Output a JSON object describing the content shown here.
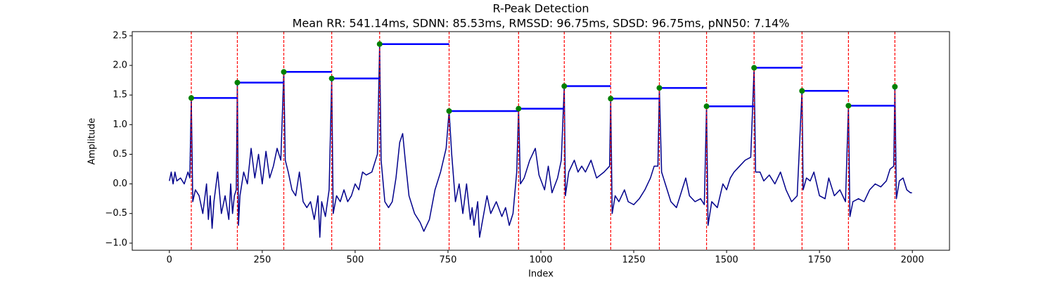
{
  "chart_data": {
    "type": "line",
    "title": "R-Peak Detection",
    "subtitle": "Mean RR: 541.14ms, SDNN: 85.53ms, RMSSD: 96.75ms, SDSD: 96.75ms, pNN50: 7.14%",
    "x_label": "Index",
    "y_label": "Amplitude",
    "xlim": [
      -100,
      2100
    ],
    "ylim": [
      -1.12,
      2.57
    ],
    "xticks": [
      0,
      250,
      500,
      750,
      1000,
      1250,
      1500,
      1750,
      2000
    ],
    "yticks": [
      {
        "value": -1,
        "label": "−1.0"
      },
      {
        "value": -0.5,
        "label": "−0.5"
      },
      {
        "value": 0,
        "label": "0.0"
      },
      0.5,
      {
        "value": 1,
        "label": "1.0"
      },
      1.5,
      {
        "value": 2,
        "label": "2.0"
      },
      2.5
    ],
    "x": [
      0,
      5,
      10,
      15,
      20,
      30,
      40,
      50,
      55,
      59,
      63,
      70,
      80,
      90,
      100,
      105,
      110,
      115,
      120,
      130,
      140,
      150,
      160,
      165,
      170,
      175,
      180,
      183,
      186,
      190,
      200,
      210,
      220,
      230,
      240,
      250,
      260,
      270,
      280,
      290,
      300,
      308,
      312,
      320,
      330,
      340,
      350,
      360,
      370,
      380,
      390,
      400,
      405,
      410,
      420,
      430,
      437,
      441,
      450,
      460,
      470,
      480,
      490,
      500,
      510,
      520,
      530,
      545,
      560,
      566,
      570,
      580,
      590,
      600,
      610,
      620,
      628,
      635,
      645,
      660,
      675,
      685,
      700,
      715,
      730,
      745,
      753,
      760,
      770,
      780,
      790,
      800,
      810,
      815,
      820,
      830,
      835,
      845,
      855,
      865,
      880,
      895,
      905,
      915,
      925,
      935,
      940,
      945,
      955,
      970,
      985,
      995,
      1010,
      1020,
      1030,
      1045,
      1055,
      1063,
      1066,
      1075,
      1090,
      1100,
      1110,
      1120,
      1135,
      1150,
      1170,
      1185,
      1188,
      1192,
      1200,
      1210,
      1225,
      1235,
      1250,
      1265,
      1280,
      1295,
      1305,
      1315,
      1319,
      1325,
      1335,
      1350,
      1365,
      1380,
      1390,
      1400,
      1415,
      1430,
      1440,
      1446,
      1450,
      1460,
      1475,
      1490,
      1500,
      1510,
      1520,
      1535,
      1550,
      1565,
      1574,
      1578,
      1590,
      1600,
      1615,
      1630,
      1645,
      1660,
      1675,
      1690,
      1703,
      1706,
      1715,
      1725,
      1735,
      1750,
      1765,
      1775,
      1790,
      1805,
      1820,
      1828,
      1832,
      1840,
      1855,
      1870,
      1885,
      1900,
      1915,
      1930,
      1940,
      1950,
      1953,
      1957,
      1965,
      1975,
      1985,
      1995,
      1999
    ],
    "series": [
      {
        "color": "#00008b",
        "values": [
          0.05,
          0.2,
          0.0,
          0.2,
          0.05,
          0.1,
          0.0,
          0.2,
          0.1,
          1.45,
          -0.3,
          -0.1,
          -0.2,
          -0.5,
          0.0,
          -0.6,
          -0.2,
          -0.75,
          -0.3,
          0.2,
          -0.5,
          -0.2,
          -0.6,
          0.0,
          -0.5,
          -0.2,
          -0.1,
          1.71,
          -0.7,
          -0.2,
          0.2,
          0.0,
          0.6,
          0.1,
          0.5,
          0.0,
          0.55,
          0.1,
          0.3,
          0.6,
          0.4,
          1.89,
          0.4,
          0.2,
          -0.1,
          -0.2,
          0.2,
          -0.3,
          -0.4,
          -0.3,
          -0.6,
          -0.2,
          -0.9,
          -0.3,
          -0.55,
          -0.1,
          1.78,
          -0.5,
          -0.2,
          -0.3,
          -0.1,
          -0.3,
          -0.2,
          0.0,
          -0.1,
          0.2,
          0.15,
          0.2,
          0.5,
          2.36,
          0.4,
          -0.3,
          -0.4,
          -0.3,
          0.1,
          0.7,
          0.85,
          0.4,
          -0.2,
          -0.5,
          -0.65,
          -0.8,
          -0.6,
          -0.1,
          0.2,
          0.6,
          1.23,
          0.5,
          -0.3,
          0.0,
          -0.5,
          0.0,
          -0.6,
          -0.4,
          -0.7,
          -0.3,
          -0.9,
          -0.55,
          -0.2,
          -0.5,
          -0.3,
          -0.55,
          -0.4,
          -0.7,
          -0.5,
          0.2,
          1.27,
          0.0,
          0.1,
          0.4,
          0.6,
          0.15,
          -0.1,
          0.3,
          -0.15,
          0.1,
          0.4,
          1.65,
          -0.2,
          0.2,
          0.4,
          0.2,
          0.3,
          0.2,
          0.4,
          0.1,
          0.2,
          0.3,
          1.44,
          -0.5,
          -0.2,
          -0.3,
          -0.1,
          -0.3,
          -0.35,
          -0.25,
          -0.1,
          0.1,
          0.3,
          0.3,
          1.62,
          0.2,
          0.0,
          -0.3,
          -0.4,
          -0.1,
          0.1,
          -0.2,
          -0.3,
          -0.25,
          -0.35,
          1.31,
          -0.7,
          -0.3,
          -0.4,
          0.0,
          -0.1,
          0.1,
          0.2,
          0.3,
          0.4,
          0.45,
          1.96,
          0.2,
          0.2,
          0.05,
          0.15,
          0.0,
          0.2,
          -0.1,
          -0.3,
          -0.2,
          1.57,
          -0.1,
          0.1,
          0.05,
          0.2,
          -0.2,
          -0.25,
          0.1,
          -0.2,
          -0.1,
          -0.3,
          1.32,
          -0.55,
          -0.3,
          -0.25,
          -0.3,
          -0.1,
          0.0,
          -0.05,
          0.05,
          0.25,
          0.3,
          1.64,
          -0.25,
          0.05,
          0.1,
          -0.1,
          -0.15,
          -0.15
        ]
      }
    ],
    "peaks": {
      "x": [
        59,
        183,
        308,
        437,
        566,
        753,
        940,
        1063,
        1188,
        1319,
        1446,
        1574,
        1703,
        1828,
        1953
      ],
      "values": [
        1.45,
        1.71,
        1.89,
        1.78,
        2.36,
        1.23,
        1.27,
        1.65,
        1.44,
        1.62,
        1.31,
        1.96,
        1.57,
        1.32,
        1.64
      ],
      "color": "green",
      "line_color": "red",
      "interval_color": "blue"
    }
  }
}
